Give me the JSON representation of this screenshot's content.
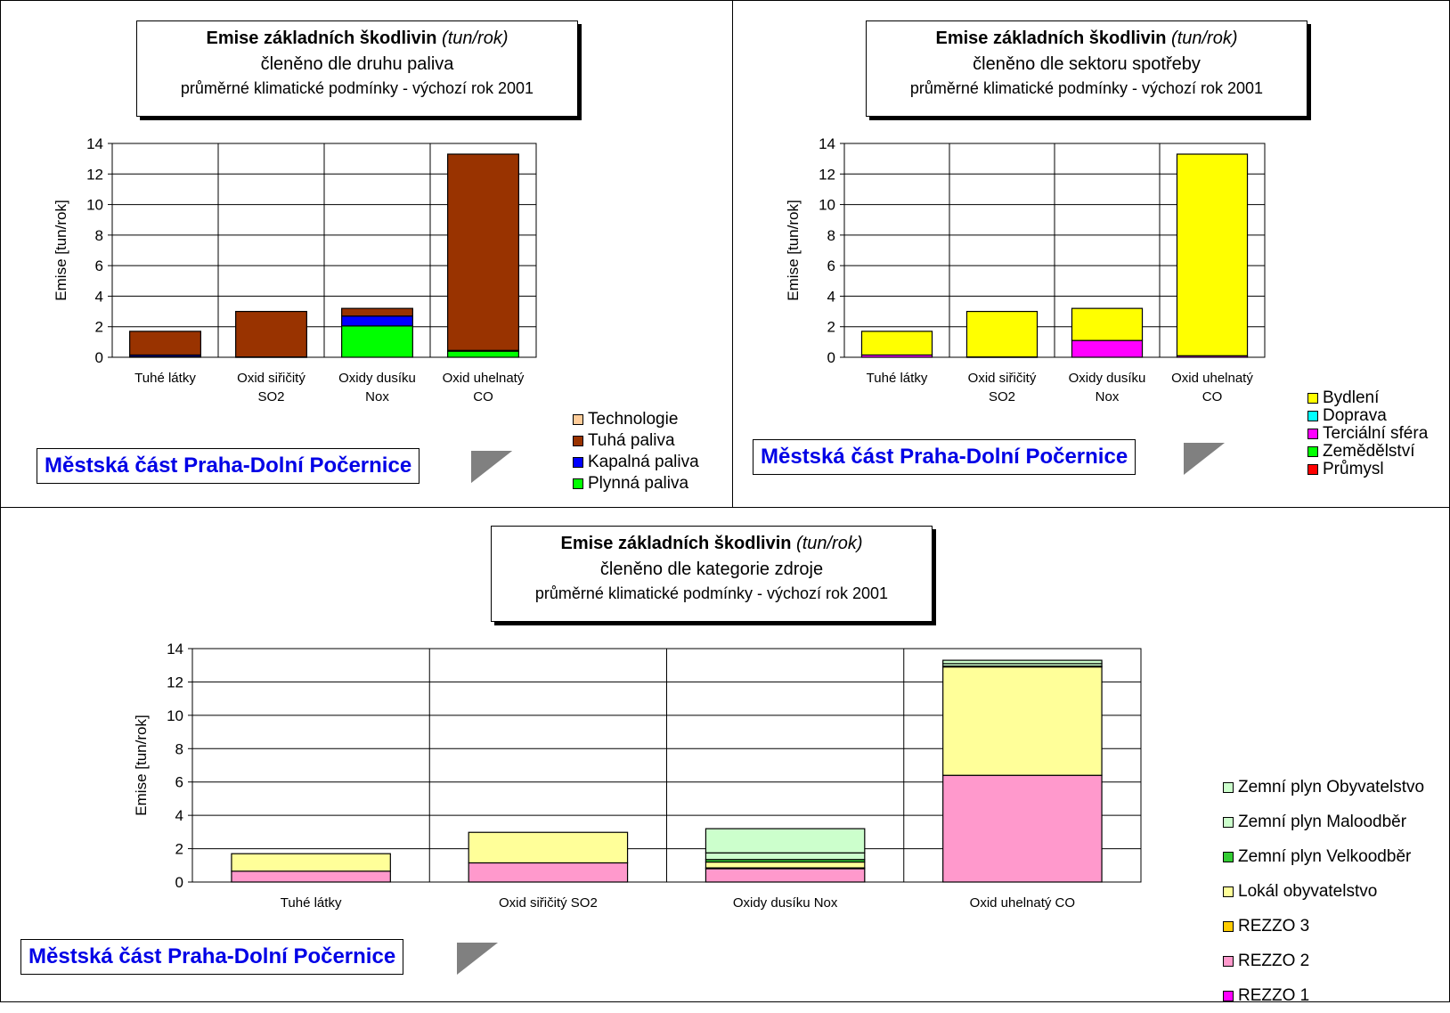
{
  "charts": [
    {
      "title_bold": "Emise základních škodlivin",
      "title_italic": "(tun/rok)",
      "subtitle": "členěno dle druhu paliva",
      "subtitle2": "průměrné klimatické podmínky - výchozí rok 2001",
      "location": "Městská část Praha-Dolní Počernice"
    },
    {
      "title_bold": "Emise základních škodlivin",
      "title_italic": "(tun/rok)",
      "subtitle": "členěno dle sektoru spotřeby",
      "subtitle2": "průměrné klimatické podmínky - výchozí rok 2001",
      "location": "Městská část Praha-Dolní Počernice"
    },
    {
      "title_bold": "Emise základních škodlivin",
      "title_italic": "(tun/rok)",
      "subtitle": "členěno dle kategorie zdroje",
      "subtitle2": "průměrné klimatické podmínky - výchozí rok 2001",
      "location": "Městská část Praha-Dolní Počernice"
    }
  ],
  "chart_data": [
    {
      "type": "bar",
      "stacked": true,
      "categories": [
        [
          "Tuhé látky"
        ],
        [
          "Oxid siřičitý",
          "SO2"
        ],
        [
          "Oxidy dusíku",
          "Nox"
        ],
        [
          "Oxid uhelnatý",
          "CO"
        ]
      ],
      "ylabel": "Emise [tun/rok]",
      "ylim": [
        0,
        14
      ],
      "yticks": [
        0,
        2,
        4,
        6,
        8,
        10,
        12,
        14
      ],
      "grid": true,
      "legend_position": "right",
      "series": [
        {
          "name": "Plynná paliva",
          "color": "#00ff00",
          "values": [
            0.05,
            0.0,
            2.05,
            0.4
          ]
        },
        {
          "name": "Kapalná paliva",
          "color": "#0000ff",
          "values": [
            0.1,
            0.02,
            0.65,
            0.05
          ]
        },
        {
          "name": "Tuhá paliva",
          "color": "#993300",
          "values": [
            1.55,
            2.98,
            0.5,
            12.85
          ]
        },
        {
          "name": "Technologie",
          "color": "#ffcc99",
          "values": [
            0,
            0,
            0,
            0
          ]
        }
      ],
      "legend_order": [
        "Technologie",
        "Tuhá paliva",
        "Kapalná paliva",
        "Plynná paliva"
      ]
    },
    {
      "type": "bar",
      "stacked": true,
      "categories": [
        [
          "Tuhé látky"
        ],
        [
          "Oxid siřičitý",
          "SO2"
        ],
        [
          "Oxidy dusíku",
          "Nox"
        ],
        [
          "Oxid uhelnatý",
          "CO"
        ]
      ],
      "ylabel": "Emise [tun/rok]",
      "ylim": [
        0,
        14
      ],
      "yticks": [
        0,
        2,
        4,
        6,
        8,
        10,
        12,
        14
      ],
      "grid": true,
      "legend_position": "right",
      "series": [
        {
          "name": "Průmysl",
          "color": "#ff0000",
          "values": [
            0,
            0,
            0,
            0
          ]
        },
        {
          "name": "Zemědělství",
          "color": "#00ff00",
          "values": [
            0,
            0,
            0,
            0
          ]
        },
        {
          "name": "Terciální sféra",
          "color": "#ff00ff",
          "values": [
            0.15,
            0.02,
            1.1,
            0.1
          ]
        },
        {
          "name": "Doprava",
          "color": "#00ffff",
          "values": [
            0,
            0,
            0,
            0
          ]
        },
        {
          "name": "Bydlení",
          "color": "#ffff00",
          "values": [
            1.55,
            2.98,
            2.1,
            13.2
          ]
        }
      ],
      "legend_order": [
        "Bydlení",
        "Doprava",
        "Terciální sféra",
        "Zemědělství",
        "Průmysl"
      ]
    },
    {
      "type": "bar",
      "stacked": true,
      "categories": [
        [
          "Tuhé látky"
        ],
        [
          "Oxid siřičitý SO2"
        ],
        [
          "Oxidy dusíku Nox"
        ],
        [
          "Oxid uhelnatý CO"
        ]
      ],
      "ylabel": "Emise [tun/rok]",
      "ylim": [
        0,
        14
      ],
      "yticks": [
        0,
        2,
        4,
        6,
        8,
        10,
        12,
        14
      ],
      "grid": true,
      "legend_position": "right",
      "series": [
        {
          "name": "REZZO 1",
          "color": "#ff00ff",
          "values": [
            0,
            0,
            0,
            0
          ]
        },
        {
          "name": "REZZO 2",
          "color": "#ff99cc",
          "values": [
            0.65,
            1.15,
            0.8,
            6.4
          ]
        },
        {
          "name": "REZZO 3",
          "color": "#ffcc00",
          "values": [
            0,
            0,
            0.05,
            0
          ]
        },
        {
          "name": "Lokál obyvatelstvo",
          "color": "#ffff99",
          "values": [
            1.05,
            1.83,
            0.35,
            6.5
          ]
        },
        {
          "name": "Zemní plyn Velkoodběr",
          "color": "#33cc33",
          "values": [
            0,
            0,
            0.15,
            0.05
          ]
        },
        {
          "name": "Zemní plyn Maloodběr",
          "color": "#ccffcc",
          "values": [
            0,
            0,
            0.4,
            0.15
          ]
        },
        {
          "name": "Zemní plyn Obyvatelstvo",
          "color": "#ccffcc",
          "values": [
            0,
            0,
            1.45,
            0.2
          ]
        }
      ],
      "legend_order": [
        "Zemní plyn Obyvatelstvo",
        "Zemní plyn Maloodběr",
        "Zemní plyn Velkoodběr",
        "Lokál obyvatelstvo",
        "REZZO 3",
        "REZZO 2",
        "REZZO 1"
      ]
    }
  ]
}
